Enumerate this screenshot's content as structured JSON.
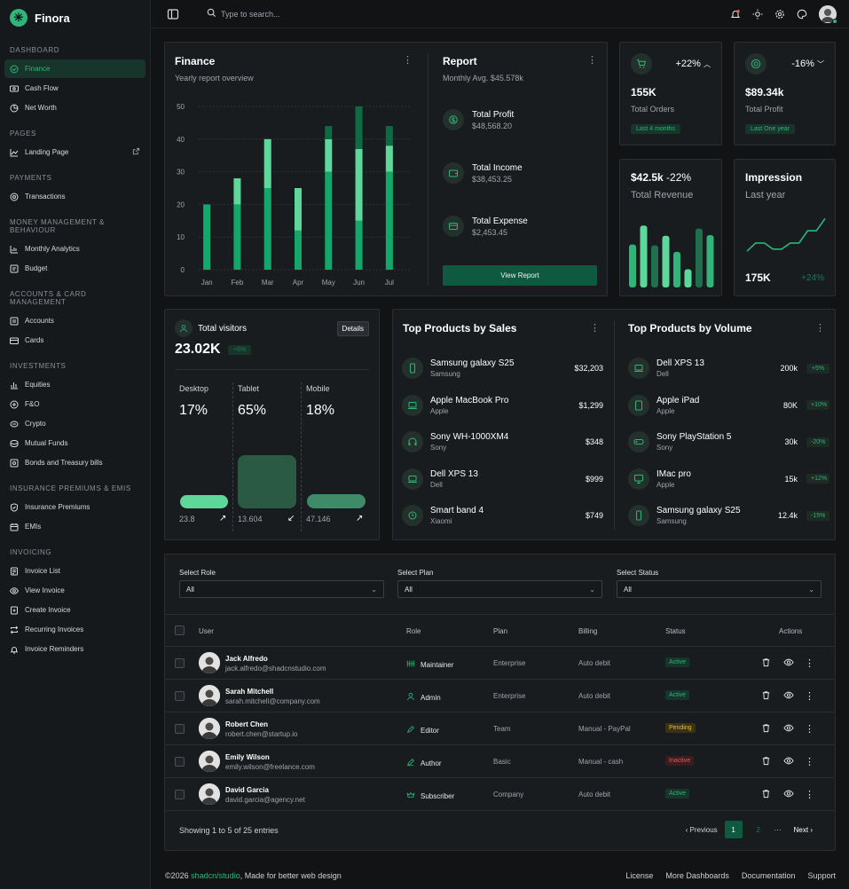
{
  "app": {
    "name": "Finora"
  },
  "colors": {
    "accent": "#2fb47a",
    "bg": "#111315",
    "card": "#191c1f",
    "dark_green": "#0d5a40"
  },
  "sidebar": {
    "sections": [
      {
        "title": "Dashboard",
        "items": [
          {
            "label": "Finance",
            "icon": "finance-icon",
            "active": true
          },
          {
            "label": "Cash Flow",
            "icon": "cash-flow-icon"
          },
          {
            "label": "Net Worth",
            "icon": "net-worth-icon"
          }
        ]
      },
      {
        "title": "Pages",
        "items": [
          {
            "label": "Landing Page",
            "icon": "chart-line-icon",
            "external": true
          }
        ]
      },
      {
        "title": "Payments",
        "items": [
          {
            "label": "Transactions",
            "icon": "transactions-icon"
          }
        ]
      },
      {
        "title": "Money Management & Behaviour",
        "items": [
          {
            "label": "Monthly Analytics",
            "icon": "analytics-icon"
          },
          {
            "label": "Budget",
            "icon": "budget-icon"
          }
        ]
      },
      {
        "title": "Accounts & Card Management",
        "items": [
          {
            "label": "Accounts",
            "icon": "accounts-icon"
          },
          {
            "label": "Cards",
            "icon": "cards-icon"
          }
        ]
      },
      {
        "title": "Investments",
        "items": [
          {
            "label": "Equities",
            "icon": "equities-icon"
          },
          {
            "label": "F&O",
            "icon": "fo-icon"
          },
          {
            "label": "Crypto",
            "icon": "crypto-icon"
          },
          {
            "label": "Mutual Funds",
            "icon": "mutual-funds-icon"
          },
          {
            "label": "Bonds and Treasury bills",
            "icon": "bonds-icon"
          }
        ]
      },
      {
        "title": "Insurance Premiums & EMIs",
        "items": [
          {
            "label": "Insurance Premiums",
            "icon": "shield-icon"
          },
          {
            "label": "EMIs",
            "icon": "calendar-icon"
          }
        ]
      },
      {
        "title": "Invoicing",
        "items": [
          {
            "label": "Invoice List",
            "icon": "invoice-list-icon"
          },
          {
            "label": "View Invoice",
            "icon": "eye-icon"
          },
          {
            "label": "Create Invoice",
            "icon": "create-invoice-icon"
          },
          {
            "label": "Recurring Invoices",
            "icon": "recurring-icon"
          },
          {
            "label": "Invoice Reminders",
            "icon": "bell-icon"
          }
        ]
      }
    ]
  },
  "topbar": {
    "search_placeholder": "Type to search..."
  },
  "finance": {
    "title": "Finance",
    "subtitle": "Yearly report overview"
  },
  "chart_data": {
    "type": "bar",
    "title": "Finance",
    "subtitle": "Yearly report overview",
    "categories": [
      "Jan",
      "Feb",
      "Mar",
      "Apr",
      "May",
      "Jun",
      "Jul"
    ],
    "yticks": [
      0,
      10,
      20,
      30,
      40,
      50
    ],
    "ylim": [
      0,
      50
    ],
    "grid": true,
    "stacked": true,
    "series": [
      {
        "color": "#13a86a",
        "values": [
          20,
          20,
          25,
          12,
          30,
          15,
          30
        ]
      },
      {
        "color": "#5ed79b",
        "values": [
          0,
          8,
          15,
          13,
          10,
          22,
          8
        ]
      },
      {
        "color": "#0e6a44",
        "values": [
          0,
          0,
          0,
          0,
          4,
          13,
          6
        ]
      }
    ]
  },
  "report": {
    "title": "Report",
    "subtitle": "Monthly Avg. $45.578k",
    "items": [
      {
        "name": "Total Profit",
        "value": "$48,568.20",
        "icon": "dollar-icon"
      },
      {
        "name": "Total Income",
        "value": "$38,453.25",
        "icon": "wallet-icon"
      },
      {
        "name": "Total Expense",
        "value": "$2,453.45",
        "icon": "credit-card-icon"
      }
    ],
    "button": "View Report"
  },
  "orders": {
    "change": "+22%",
    "value": "155K",
    "label": "Total Orders",
    "period": "Last 4 months"
  },
  "profit": {
    "change": "-16%",
    "value": "$89.34k",
    "label": "Total Profit",
    "period": "Last One year"
  },
  "revenue": {
    "value": "$42.5k",
    "change": "-22%",
    "label": "Total Revenue",
    "bars": [
      0.59,
      0.85,
      0.58,
      0.71,
      0.49,
      0.25,
      0.81,
      0.72
    ]
  },
  "impression": {
    "title": "Impression",
    "subtitle": "Last year",
    "value": "175K",
    "change": "+24%",
    "line": [
      0.15,
      0.35,
      0.35,
      0.2,
      0.2,
      0.35,
      0.35,
      0.65,
      0.65,
      0.95
    ]
  },
  "visitors": {
    "title": "Total visitors",
    "value": "23.02K",
    "change": "+6%",
    "details": "Details",
    "devices": [
      {
        "name": "Desktop",
        "pct": "17%",
        "count": "23.8",
        "arrow": "↗"
      },
      {
        "name": "Tablet",
        "pct": "65%",
        "count": "13.604",
        "arrow": "↙"
      },
      {
        "name": "Mobile",
        "pct": "18%",
        "count": "47.146",
        "arrow": "↗"
      }
    ]
  },
  "top_sales": {
    "title": "Top Products by Sales",
    "items": [
      {
        "name": "Samsung galaxy S25",
        "brand": "Samsung",
        "value": "$32,203",
        "icon": "phone-icon"
      },
      {
        "name": "Apple MacBook Pro",
        "brand": "Apple",
        "value": "$1,299",
        "icon": "laptop-icon"
      },
      {
        "name": "Sony WH-1000XM4",
        "brand": "Sony",
        "value": "$348",
        "icon": "headphones-icon"
      },
      {
        "name": "Dell XPS 13",
        "brand": "Dell",
        "value": "$999",
        "icon": "laptop-icon"
      },
      {
        "name": "Smart band 4",
        "brand": "Xiaomi",
        "value": "$749",
        "icon": "watch-icon"
      }
    ]
  },
  "top_volume": {
    "title": "Top Products by Volume",
    "items": [
      {
        "name": "Dell XPS 13",
        "brand": "Dell",
        "value": "200k",
        "change": "+5%",
        "icon": "laptop-icon"
      },
      {
        "name": "Apple iPad",
        "brand": "Apple",
        "value": "80K",
        "change": "+10%",
        "icon": "tablet-icon"
      },
      {
        "name": "Sony PlayStation 5",
        "brand": "Sony",
        "value": "30k",
        "change": "-20%",
        "icon": "gamepad-icon"
      },
      {
        "name": "IMac pro",
        "brand": "Apple",
        "value": "15k",
        "change": "+12%",
        "icon": "monitor-icon"
      },
      {
        "name": "Samsung galaxy S25",
        "brand": "Samsung",
        "value": "12.4k",
        "change": "-15%",
        "icon": "phone-icon"
      }
    ]
  },
  "filters": [
    {
      "label": "Select Role",
      "value": "All"
    },
    {
      "label": "Select Plan",
      "value": "All"
    },
    {
      "label": "Select Status",
      "value": "All"
    }
  ],
  "table": {
    "headers": {
      "user": "User",
      "role": "Role",
      "plan": "Plan",
      "billing": "Billing",
      "status": "Status",
      "actions": "Actions"
    },
    "rows": [
      {
        "name": "Jack Alfredo",
        "email": "jack.alfredo@shadcnstudio.com",
        "role": "Maintainer",
        "plan": "Enterprise",
        "billing": "Auto debit",
        "status": "Active"
      },
      {
        "name": "Sarah Mitchell",
        "email": "sarah.mitchell@company.com",
        "role": "Admin",
        "plan": "Enterprise",
        "billing": "Auto debit",
        "status": "Active"
      },
      {
        "name": "Robert Chen",
        "email": "robert.chen@startup.io",
        "role": "Editor",
        "plan": "Team",
        "billing": "Manual - PayPal",
        "status": "Pending"
      },
      {
        "name": "Emily Wilson",
        "email": "emily.wilson@freelance.com",
        "role": "Author",
        "plan": "Basic",
        "billing": "Manual - cash",
        "status": "Inactive"
      },
      {
        "name": "David Garcia",
        "email": "david.garcia@agency.net",
        "role": "Subscriber",
        "plan": "Company",
        "billing": "Auto debit",
        "status": "Active"
      }
    ],
    "showing": "Showing 1 to 5 of 25 entries",
    "pager": {
      "prev": "Previous",
      "next": "Next",
      "pages": [
        "1",
        "2"
      ],
      "ellipsis": "···"
    }
  },
  "footer": {
    "copyright": "©2026 ",
    "brand": "shadcn/studio",
    "tagline": ", Made for better web design",
    "links": [
      "License",
      "More Dashboards",
      "Documentation",
      "Support"
    ]
  }
}
